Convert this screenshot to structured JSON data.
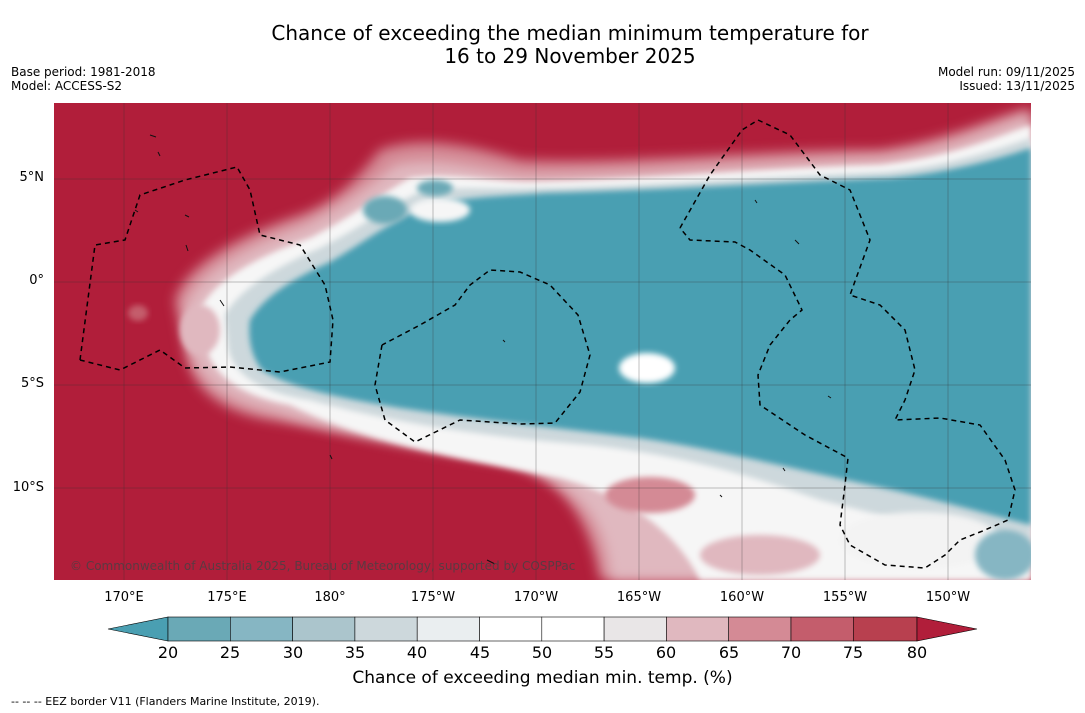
{
  "title_line1": "Chance of exceeding the median minimum temperature for",
  "title_line2": "16 to 29 November 2025",
  "base_period": "Base period: 1981-2018",
  "model": "Model: ACCESS-S2",
  "model_run": "Model run: 09/11/2025",
  "issued": "Issued: 13/11/2025",
  "lat_labels": [
    "5°N",
    "0°",
    "5°S",
    "10°S"
  ],
  "lon_labels": [
    "170°E",
    "175°E",
    "180°",
    "175°W",
    "170°W",
    "165°W",
    "160°W",
    "155°W",
    "150°W"
  ],
  "colorbar": {
    "ticks": [
      "20",
      "25",
      "30",
      "35",
      "40",
      "45",
      "50",
      "55",
      "60",
      "65",
      "70",
      "75",
      "80"
    ],
    "colors": [
      "#4a9fb2",
      "#6aa9b6",
      "#86b6c3",
      "#abc5cc",
      "#cdd8dc",
      "#eaeef0",
      "#ffffff",
      "#ffffff",
      "#e9e6e7",
      "#e0b8bf",
      "#d48a95",
      "#c45d6c",
      "#b8404f",
      "#b11e3a"
    ],
    "label": "Chance of exceeding median min. temp. (%)"
  },
  "copyright": "© Commonwealth of Australia 2025, Bureau of Meteorology, supported by COSPPac",
  "footnote": "--  --  -- EEZ border V11 (Flanders Marine Institute, 2019)."
}
